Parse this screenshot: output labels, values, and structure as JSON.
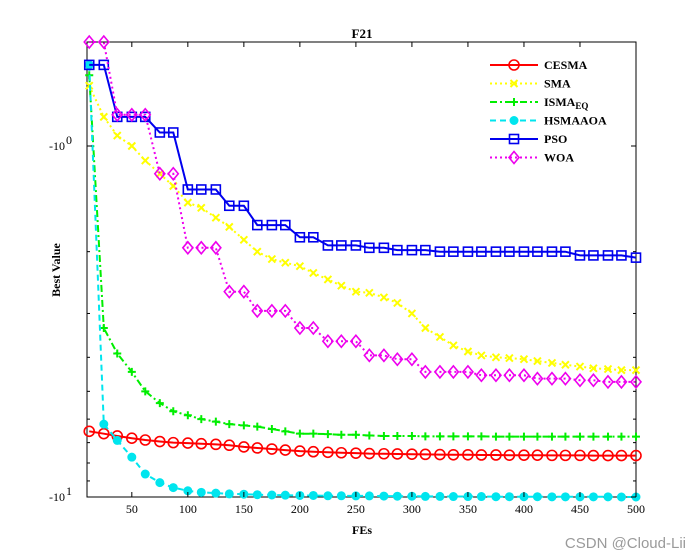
{
  "chart_data": {
    "type": "line",
    "title": "F21",
    "xlabel": "FEs",
    "ylabel": "Best Value",
    "xlim": [
      10,
      500
    ],
    "ylim": [
      -10,
      -1
    ],
    "y_scale": "log",
    "y_tick_labels": [
      {
        "value": -1,
        "label": "-10",
        "sup": "0"
      },
      {
        "value": -10,
        "label": "-10",
        "sup": "1"
      }
    ],
    "x_ticks": [
      50,
      100,
      150,
      200,
      250,
      300,
      350,
      400,
      450,
      500
    ],
    "grid": false,
    "legend_position": "top-right",
    "series": [
      {
        "name": "CESMA",
        "color": "#ff0000",
        "marker": "circle",
        "dash": "solid",
        "x": [
          12,
          25,
          37,
          50,
          62,
          75,
          87,
          100,
          112,
          125,
          137,
          150,
          162,
          175,
          187,
          200,
          212,
          225,
          237,
          250,
          262,
          275,
          287,
          300,
          312,
          325,
          337,
          350,
          362,
          375,
          387,
          400,
          412,
          425,
          437,
          450,
          462,
          475,
          487,
          500
        ],
        "y": [
          -6.5,
          -6.6,
          -6.7,
          -6.8,
          -6.88,
          -6.95,
          -7.0,
          -7.02,
          -7.05,
          -7.08,
          -7.12,
          -7.2,
          -7.25,
          -7.3,
          -7.35,
          -7.4,
          -7.43,
          -7.46,
          -7.48,
          -7.5,
          -7.52,
          -7.53,
          -7.54,
          -7.55,
          -7.56,
          -7.57,
          -7.58,
          -7.58,
          -7.59,
          -7.59,
          -7.6,
          -7.6,
          -7.6,
          -7.61,
          -7.61,
          -7.61,
          -7.62,
          -7.62,
          -7.62,
          -7.62
        ]
      },
      {
        "name": "SMA",
        "color": "#ffff00",
        "marker": "x",
        "dash": "dotted",
        "x": [
          12,
          25,
          37,
          50,
          62,
          75,
          87,
          100,
          112,
          125,
          137,
          150,
          162,
          175,
          187,
          200,
          212,
          225,
          237,
          250,
          262,
          275,
          287,
          300,
          312,
          325,
          337,
          350,
          362,
          375,
          387,
          400,
          412,
          425,
          437,
          450,
          462,
          475,
          487,
          500
        ],
        "y": [
          -0.42,
          -0.72,
          -0.9,
          -1.0,
          -1.1,
          -1.2,
          -1.3,
          -1.45,
          -1.5,
          -1.6,
          -1.7,
          -1.85,
          -2.0,
          -2.1,
          -2.15,
          -2.2,
          -2.3,
          -2.4,
          -2.5,
          -2.6,
          -2.62,
          -2.7,
          -2.8,
          -3.0,
          -3.3,
          -3.5,
          -3.7,
          -3.85,
          -3.95,
          -4.0,
          -4.02,
          -4.05,
          -4.1,
          -4.15,
          -4.2,
          -4.25,
          -4.3,
          -4.32,
          -4.35,
          -4.35
        ]
      },
      {
        "name": "ISMA",
        "name_sub": "EQ",
        "color": "#00ee00",
        "marker": "plus",
        "dash": "dashdot",
        "x": [
          12,
          25,
          37,
          50,
          62,
          75,
          87,
          100,
          112,
          125,
          137,
          150,
          162,
          175,
          187,
          200,
          212,
          225,
          237,
          250,
          262,
          275,
          287,
          300,
          312,
          325,
          337,
          350,
          362,
          375,
          387,
          400,
          412,
          425,
          437,
          450,
          462,
          475,
          487,
          500
        ],
        "y": [
          -0.32,
          -3.3,
          -3.9,
          -4.4,
          -5.0,
          -5.4,
          -5.7,
          -5.85,
          -6.0,
          -6.1,
          -6.2,
          -6.25,
          -6.3,
          -6.4,
          -6.5,
          -6.6,
          -6.6,
          -6.62,
          -6.65,
          -6.65,
          -6.68,
          -6.7,
          -6.7,
          -6.7,
          -6.72,
          -6.72,
          -6.72,
          -6.72,
          -6.72,
          -6.73,
          -6.73,
          -6.73,
          -6.73,
          -6.73,
          -6.73,
          -6.73,
          -6.73,
          -6.73,
          -6.73,
          -6.73
        ]
      },
      {
        "name": "HSMAAOA",
        "name_sub": "",
        "color": "#00e5ee",
        "marker": "dot",
        "dash": "dashed",
        "x": [
          12,
          25,
          37,
          50,
          62,
          75,
          87,
          100,
          112,
          125,
          137,
          150,
          162,
          175,
          187,
          200,
          212,
          225,
          237,
          250,
          262,
          275,
          287,
          300,
          312,
          325,
          337,
          350,
          362,
          375,
          387,
          400,
          412,
          425,
          437,
          450,
          462,
          475,
          487,
          500
        ],
        "y": [
          -0.22,
          -6.2,
          -6.9,
          -7.7,
          -8.6,
          -9.1,
          -9.4,
          -9.6,
          -9.7,
          -9.75,
          -9.8,
          -9.82,
          -9.85,
          -9.87,
          -9.88,
          -9.9,
          -9.9,
          -9.92,
          -9.92,
          -9.93,
          -9.93,
          -9.94,
          -9.95,
          -9.95,
          -9.96,
          -9.96,
          -9.97,
          -9.97,
          -9.97,
          -9.98,
          -9.98,
          -9.98,
          -9.98,
          -9.99,
          -9.99,
          -9.99,
          -9.99,
          -9.99,
          -10.0,
          -10.0
        ]
      },
      {
        "name": "PSO",
        "name_sub": "",
        "color": "#0000ee",
        "marker": "square",
        "dash": "solid",
        "x": [
          12,
          25,
          37,
          50,
          62,
          75,
          87,
          100,
          112,
          125,
          137,
          150,
          162,
          175,
          187,
          200,
          212,
          225,
          237,
          250,
          262,
          275,
          287,
          300,
          312,
          325,
          337,
          350,
          362,
          375,
          387,
          400,
          412,
          425,
          437,
          450,
          462,
          475,
          487,
          500
        ],
        "y": [
          -0.22,
          -0.22,
          -0.72,
          -0.72,
          -0.72,
          -0.87,
          -0.87,
          -1.33,
          -1.33,
          -1.33,
          -1.48,
          -1.48,
          -1.68,
          -1.68,
          -1.68,
          -1.82,
          -1.82,
          -1.92,
          -1.92,
          -1.92,
          -1.95,
          -1.95,
          -1.98,
          -1.98,
          -1.98,
          -2.0,
          -2.0,
          -2.0,
          -2.0,
          -2.0,
          -2.0,
          -2.0,
          -2.0,
          -2.0,
          -2.0,
          -2.05,
          -2.05,
          -2.05,
          -2.05,
          -2.08
        ]
      },
      {
        "name": "WOA",
        "name_sub": "",
        "color": "#ee00ee",
        "marker": "diamond",
        "dash": "dotted",
        "x": [
          12,
          25,
          37,
          50,
          62,
          75,
          87,
          100,
          112,
          125,
          137,
          150,
          162,
          175,
          187,
          200,
          212,
          225,
          237,
          250,
          262,
          275,
          287,
          300,
          312,
          325,
          337,
          350,
          362,
          375,
          387,
          400,
          412,
          425,
          437,
          450,
          462,
          475,
          487,
          500
        ],
        "y": [
          -0.0,
          -0.0,
          -0.7,
          -0.7,
          -0.7,
          -1.2,
          -1.2,
          -1.95,
          -1.95,
          -1.95,
          -2.6,
          -2.6,
          -2.95,
          -2.95,
          -2.95,
          -3.3,
          -3.3,
          -3.6,
          -3.6,
          -3.6,
          -3.95,
          -3.95,
          -4.05,
          -4.05,
          -4.4,
          -4.4,
          -4.4,
          -4.4,
          -4.5,
          -4.5,
          -4.5,
          -4.5,
          -4.6,
          -4.6,
          -4.6,
          -4.65,
          -4.65,
          -4.7,
          -4.7,
          -4.7
        ]
      }
    ]
  },
  "watermark": "CSDN @Cloud-Lii"
}
